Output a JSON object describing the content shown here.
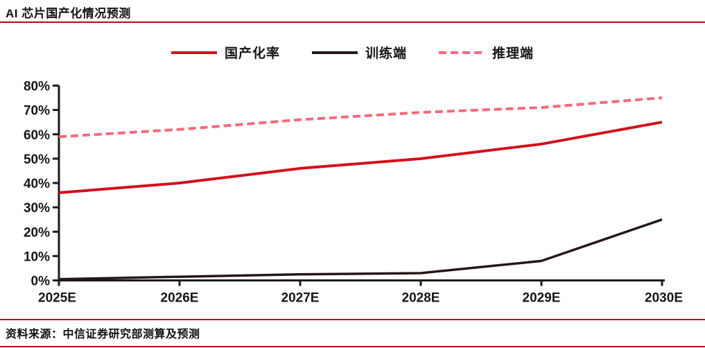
{
  "header": {
    "title": "AI 芯片国产化情况预测"
  },
  "footer": {
    "source": "资料来源：中信证券研究部测算及预测"
  },
  "colors": {
    "title_rule": "#b20d12",
    "footer_rule": "#c00c14",
    "axis": "#1a1a1a",
    "localization_red": "#d2101c",
    "training_black": "#231815",
    "inference_pink": "#f5697b"
  },
  "chart_data": {
    "type": "line",
    "categories": [
      "2025E",
      "2026E",
      "2027E",
      "2028E",
      "2029E",
      "2030E"
    ],
    "series": [
      {
        "name": "国产化率",
        "color": "#d2101c",
        "line_style": "solid",
        "values": [
          36,
          40,
          46,
          50,
          56,
          65
        ]
      },
      {
        "name": "训练端",
        "color": "#231815",
        "line_style": "solid",
        "values": [
          0.5,
          1.5,
          2.5,
          3,
          8,
          25
        ]
      },
      {
        "name": "推理端",
        "color": "#f5697b",
        "line_style": "dashed",
        "values": [
          59,
          62,
          66,
          69,
          71,
          75
        ]
      }
    ],
    "ylabel": "",
    "xlabel": "",
    "ylim": [
      0,
      80
    ],
    "ytick_step": 10,
    "ytick_labels": [
      "0%",
      "10%",
      "20%",
      "30%",
      "40%",
      "50%",
      "60%",
      "70%",
      "80%"
    ],
    "ytick_format": "percent",
    "legend_position": "top",
    "grid": false
  }
}
